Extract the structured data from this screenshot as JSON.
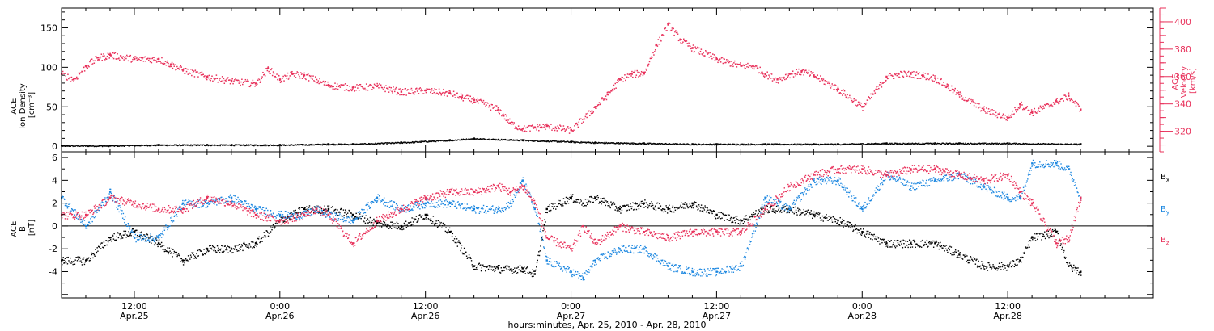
{
  "colors": {
    "density": "#000000",
    "velocity": "#e8305a",
    "bx": "#000000",
    "by": "#1a86e0",
    "bz": "#e8305a",
    "axis": "#000000"
  },
  "chart_data": [
    {
      "type": "scatter",
      "panel": "top",
      "ylabel": "ACE\nIon Density\n[cm⁻³]",
      "ylabel_lines": [
        "ACE",
        "Ion Density",
        "[cm⁻³]"
      ],
      "ylim": [
        -7,
        175
      ],
      "yticks": [
        0,
        50,
        100,
        150
      ],
      "y2label_lines": [
        "ACE",
        "Velocity",
        "[km/s]"
      ],
      "y2lim": [
        305,
        410
      ],
      "y2ticks": [
        320,
        340,
        360,
        380,
        400
      ],
      "series": [
        {
          "name": "",
          "axis": "left",
          "color_key": "density",
          "x": [
            6,
            10,
            14,
            18,
            20,
            24,
            28,
            30,
            34,
            38,
            40,
            44,
            48,
            50,
            54,
            58,
            60,
            64,
            68,
            70,
            74,
            78,
            80,
            84,
            90
          ],
          "y": [
            1,
            1,
            2,
            2,
            2,
            2,
            3,
            3,
            5,
            8,
            10,
            8,
            6,
            5,
            4,
            3,
            3,
            3,
            3,
            3,
            4,
            4,
            4,
            4,
            3
          ]
        },
        {
          "name": "",
          "axis": "right",
          "color_key": "velocity",
          "x": [
            6,
            7,
            8,
            9,
            10,
            12,
            14,
            15,
            16,
            18,
            20,
            22,
            23,
            24,
            25,
            26,
            28,
            30,
            32,
            34,
            36,
            38,
            39,
            40,
            42,
            43,
            44,
            45,
            46,
            48,
            50,
            51,
            52,
            53,
            54,
            55,
            56,
            57,
            58,
            60,
            62,
            63,
            64,
            65,
            66,
            67,
            68,
            70,
            72,
            74,
            75,
            76,
            77,
            78,
            79,
            80,
            82,
            84,
            85,
            86,
            88,
            89,
            90
          ],
          "y": [
            362,
            358,
            368,
            374,
            376,
            373,
            373,
            369,
            365,
            360,
            357,
            355,
            366,
            358,
            362,
            361,
            354,
            352,
            353,
            349,
            350,
            348,
            345,
            343,
            336,
            326,
            322,
            323,
            324,
            321,
            338,
            347,
            358,
            362,
            363,
            383,
            398,
            387,
            381,
            373,
            368,
            368,
            362,
            358,
            362,
            364,
            361,
            351,
            338,
            360,
            362,
            362,
            361,
            359,
            353,
            347,
            336,
            330,
            340,
            334,
            342,
            346,
            336
          ]
        }
      ]
    },
    {
      "type": "scatter",
      "panel": "bottom",
      "ylabel": "ACE\nB\n[nT]",
      "ylabel_lines": [
        "ACE",
        "B",
        "[nT]"
      ],
      "ylim": [
        -6.3,
        6.5
      ],
      "yticks": [
        -4,
        -2,
        0,
        2,
        4,
        6
      ],
      "series": [
        {
          "name": "Bx",
          "color_key": "bx",
          "x": [
            6,
            8,
            10,
            12,
            14,
            16,
            18,
            20,
            22,
            24,
            26,
            27,
            28,
            30,
            32,
            34,
            36,
            38,
            40,
            42,
            43,
            44,
            45,
            46,
            48,
            49,
            50,
            52,
            54,
            56,
            58,
            60,
            62,
            64,
            66,
            68,
            70,
            72,
            74,
            76,
            78,
            80,
            82,
            84,
            85,
            86,
            88,
            89,
            90
          ],
          "y": [
            -3.0,
            -3.0,
            -1.0,
            -0.5,
            -1.5,
            -3.0,
            -2.0,
            -2.0,
            -1.5,
            0.5,
            1.5,
            1.5,
            1.5,
            1.0,
            0.3,
            0.0,
            1.0,
            -0.5,
            -3.5,
            -3.7,
            -3.8,
            -3.7,
            -4.2,
            1.5,
            2.5,
            2.0,
            2.5,
            1.5,
            2.0,
            1.5,
            2.0,
            1.0,
            0.5,
            1.5,
            1.5,
            1.0,
            0.5,
            -0.5,
            -1.5,
            -1.5,
            -1.5,
            -2.5,
            -3.5,
            -3.5,
            -3.0,
            -1.0,
            -0.5,
            -3.5,
            -4.0
          ]
        },
        {
          "name": "By",
          "color_key": "by",
          "x": [
            6,
            8,
            10,
            12,
            14,
            16,
            18,
            20,
            22,
            24,
            26,
            27,
            28,
            30,
            32,
            34,
            36,
            38,
            40,
            42,
            43,
            44,
            45,
            46,
            48,
            49,
            50,
            52,
            54,
            56,
            58,
            60,
            62,
            64,
            66,
            68,
            70,
            72,
            74,
            76,
            78,
            80,
            82,
            84,
            85,
            86,
            88,
            89,
            90
          ],
          "y": [
            2.5,
            0.0,
            3.0,
            -1.0,
            -1.0,
            2.0,
            2.0,
            2.5,
            1.5,
            1.0,
            1.0,
            1.5,
            1.0,
            0.5,
            2.5,
            1.5,
            2.0,
            2.0,
            1.5,
            1.5,
            2.0,
            4.0,
            1.5,
            -3.0,
            -4.0,
            -4.5,
            -3.0,
            -2.0,
            -2.0,
            -3.5,
            -4.0,
            -4.0,
            -3.5,
            2.5,
            1.5,
            4.0,
            4.0,
            1.5,
            4.5,
            3.5,
            4.0,
            4.5,
            3.5,
            2.5,
            2.5,
            5.5,
            5.5,
            5.0,
            2.5
          ]
        },
        {
          "name": "Bz",
          "color_key": "bz",
          "x": [
            6,
            8,
            10,
            12,
            14,
            16,
            18,
            20,
            22,
            24,
            26,
            27,
            28,
            30,
            32,
            34,
            36,
            38,
            40,
            42,
            43,
            44,
            45,
            46,
            48,
            49,
            50,
            52,
            54,
            56,
            58,
            60,
            62,
            64,
            66,
            68,
            70,
            72,
            74,
            76,
            78,
            80,
            82,
            84,
            85,
            86,
            88,
            89,
            90
          ],
          "y": [
            1.0,
            1.0,
            2.5,
            2.0,
            1.5,
            1.5,
            2.5,
            2.0,
            1.0,
            0.5,
            1.0,
            1.5,
            1.0,
            -1.5,
            0.5,
            1.5,
            2.5,
            3.0,
            3.0,
            3.5,
            3.0,
            3.5,
            2.0,
            -1.0,
            -2.0,
            0.0,
            -1.5,
            0.0,
            -0.5,
            -1.0,
            -0.5,
            -0.5,
            -0.5,
            1.5,
            3.5,
            4.5,
            5.0,
            5.0,
            4.5,
            5.0,
            5.0,
            4.5,
            4.0,
            4.5,
            3.0,
            2.0,
            -1.5,
            -1.0,
            2.5
          ]
        }
      ],
      "legend": [
        "Bx",
        "By",
        "Bz"
      ],
      "legend_placement": "right"
    }
  ],
  "x_axis": {
    "xlim": [
      6,
      96
    ],
    "xlabel": "hours:minutes, Apr. 25, 2010 - Apr. 28, 2010",
    "ticks": [
      {
        "x": 12,
        "time": "12:00",
        "date": "Apr.25"
      },
      {
        "x": 24,
        "time": "0:00",
        "date": "Apr.26"
      },
      {
        "x": 36,
        "time": "12:00",
        "date": "Apr.26"
      },
      {
        "x": 48,
        "time": "0:00",
        "date": "Apr.27"
      },
      {
        "x": 60,
        "time": "12:00",
        "date": "Apr.27"
      },
      {
        "x": 72,
        "time": "0:00",
        "date": "Apr.28"
      },
      {
        "x": 84,
        "time": "12:00",
        "date": "Apr.28"
      }
    ]
  }
}
